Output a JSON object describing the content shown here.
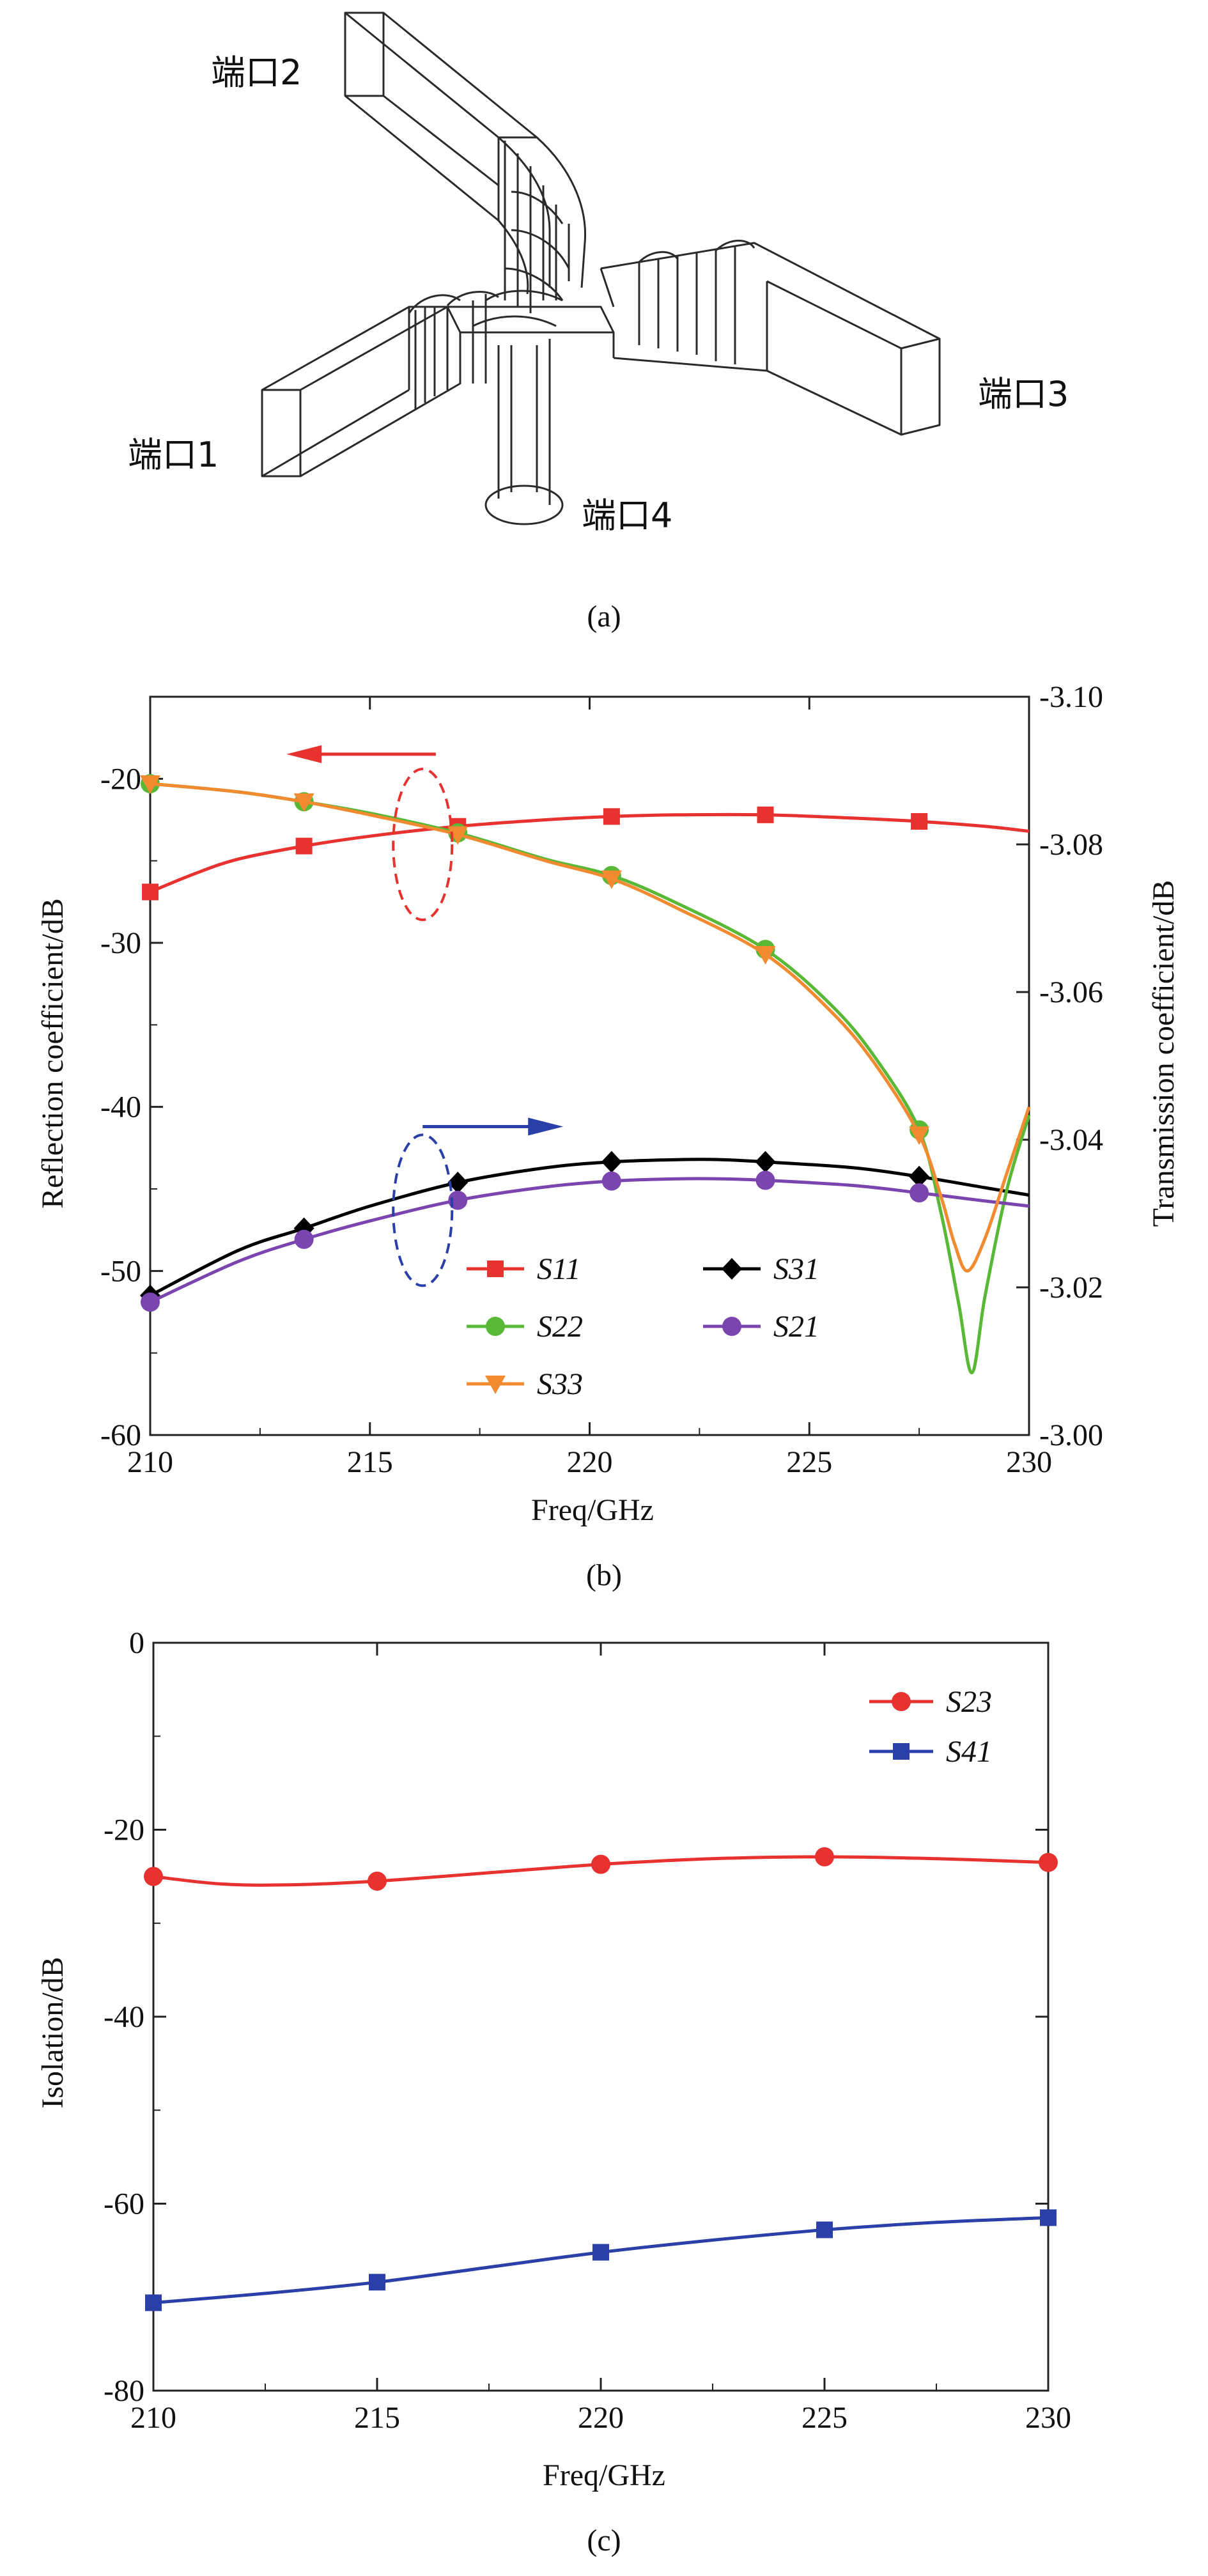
{
  "panel_a": {
    "caption": "(a)",
    "port_labels": [
      "端口1",
      "端口2",
      "端口3",
      "端口4"
    ]
  },
  "chart_data": [
    {
      "type": "line",
      "caption": "(b)",
      "xlabel": "Freq/GHz",
      "ylabel": "Reflection coefficient/dB",
      "y2label": "Transmission coefficient/dB",
      "xlim": [
        210,
        230
      ],
      "ylim": [
        -60,
        -15
      ],
      "y2lim": [
        -3.1,
        -3.0
      ],
      "y2_reversed": true,
      "xticks": [
        210,
        215,
        220,
        225,
        230
      ],
      "yticks": [
        -60,
        -50,
        -40,
        -30,
        -20
      ],
      "y2ticks": [
        -3.1,
        -3.08,
        -3.06,
        -3.04,
        -3.02,
        -3.0
      ],
      "xtick_labels": [
        "210",
        "215",
        "220",
        "225",
        "230"
      ],
      "ytick_labels": [
        "-60",
        "-50",
        "-40",
        "-30",
        "-20"
      ],
      "y2tick_labels": [
        "-3.10",
        "-3.08",
        "-3.06",
        "-3.04",
        "-3.02",
        "-3.00"
      ],
      "legend": {
        "placement": "bottom-center",
        "columns": 2
      },
      "series": [
        {
          "name": "S11",
          "marker": "square",
          "color": "#e8322f",
          "axis": "left",
          "x": [
            210,
            211,
            212,
            213.5,
            215,
            217,
            219,
            220.5,
            222,
            224,
            226,
            227.5,
            229,
            230
          ],
          "y": [
            -26.9,
            -25.8,
            -24.9,
            -24.1,
            -23.5,
            -22.9,
            -22.5,
            -22.3,
            -22.2,
            -22.2,
            -22.4,
            -22.6,
            -22.9,
            -23.2
          ],
          "markers_x": [
            210,
            213.5,
            217,
            220.5,
            224,
            227.5
          ]
        },
        {
          "name": "S31",
          "marker": "diamond",
          "color": "#000000",
          "axis": "right",
          "x": [
            210,
            212,
            213.5,
            215,
            217,
            219,
            220.5,
            222,
            223,
            224,
            226,
            227.5,
            229,
            230
          ],
          "y": [
            -3.0189,
            -3.025,
            -3.028,
            -3.031,
            -3.0342,
            -3.0362,
            -3.037,
            -3.0373,
            -3.0373,
            -3.037,
            -3.0362,
            -3.035,
            -3.0335,
            -3.0325
          ],
          "markers_x": [
            210,
            213.5,
            217,
            220.5,
            224,
            227.5
          ]
        },
        {
          "name": "S22",
          "marker": "circle",
          "color": "#5ab837",
          "axis": "left",
          "x": [
            210,
            212,
            213.5,
            215,
            217,
            219,
            220.5,
            222,
            224,
            225.5,
            226.5,
            227.5,
            228,
            228.4,
            228.7,
            229,
            229.5,
            230
          ],
          "y": [
            -20.3,
            -20.8,
            -21.4,
            -22.1,
            -23.3,
            -24.9,
            -25.9,
            -27.6,
            -30.4,
            -33.8,
            -37.0,
            -41.4,
            -46.5,
            -52.0,
            -56.2,
            -51.5,
            -45.0,
            -40.5
          ],
          "markers_x": [
            210,
            213.5,
            217,
            220.5,
            224,
            227.5
          ]
        },
        {
          "name": "S21",
          "marker": "circle",
          "color": "#7b45b0",
          "axis": "right",
          "x": [
            210,
            212,
            213.5,
            215,
            217,
            219,
            220.5,
            222,
            223,
            224,
            226,
            227.5,
            229,
            230
          ],
          "y": [
            -3.018,
            -3.0235,
            -3.0265,
            -3.029,
            -3.0318,
            -3.0336,
            -3.0344,
            -3.0347,
            -3.0347,
            -3.0345,
            -3.0338,
            -3.0328,
            -3.0317,
            -3.031
          ],
          "markers_x": [
            210,
            213.5,
            217,
            220.5,
            224,
            227.5
          ]
        },
        {
          "name": "S33",
          "marker": "triangle-down",
          "color": "#f28a30",
          "axis": "left",
          "x": [
            210,
            212,
            213.5,
            215,
            217,
            219,
            220.5,
            222,
            224,
            225.5,
            226.5,
            227.5,
            228,
            228.3,
            228.6,
            229,
            229.5,
            230
          ],
          "y": [
            -20.3,
            -20.8,
            -21.4,
            -22.2,
            -23.4,
            -25.0,
            -26.1,
            -27.9,
            -30.7,
            -34.2,
            -37.4,
            -41.7,
            -45.5,
            -48.3,
            -50.0,
            -48.0,
            -44.0,
            -40.0
          ],
          "markers_x": [
            210,
            213.5,
            217,
            220.5,
            224,
            227.5
          ]
        }
      ],
      "annotations": [
        {
          "type": "ellipse-arrow",
          "direction": "left",
          "color": "#e8322f",
          "label_axis": "left"
        },
        {
          "type": "ellipse-arrow",
          "direction": "right",
          "color": "#2b3fa8",
          "label_axis": "right"
        }
      ]
    },
    {
      "type": "line",
      "caption": "(c)",
      "xlabel": "Freq/GHz",
      "ylabel": "Isolation/dB",
      "xlim": [
        210,
        230
      ],
      "ylim": [
        -80,
        0
      ],
      "xticks": [
        210,
        215,
        220,
        225,
        230
      ],
      "yticks": [
        -80,
        -60,
        -40,
        -20,
        0
      ],
      "xtick_labels": [
        "210",
        "215",
        "220",
        "225",
        "230"
      ],
      "ytick_labels": [
        "-80",
        "-60",
        "-40",
        "-20",
        "0"
      ],
      "legend": {
        "placement": "top-right"
      },
      "series": [
        {
          "name": "S23",
          "marker": "circle",
          "color": "#e8322f",
          "x": [
            210,
            211.5,
            213,
            215,
            217.5,
            220,
            222.5,
            225,
            227.5,
            230
          ],
          "y": [
            -25.0,
            -25.8,
            -25.9,
            -25.5,
            -24.6,
            -23.7,
            -23.1,
            -22.9,
            -23.1,
            -23.5
          ],
          "markers_x": [
            210,
            215,
            220,
            225,
            230
          ]
        },
        {
          "name": "S41",
          "marker": "square",
          "color": "#2b3fa8",
          "x": [
            210,
            212.5,
            215,
            217.5,
            220,
            222.5,
            225,
            227.5,
            230
          ],
          "y": [
            -70.6,
            -69.6,
            -68.4,
            -66.8,
            -65.2,
            -63.9,
            -62.8,
            -62.0,
            -61.5
          ],
          "markers_x": [
            210,
            215,
            220,
            225,
            230
          ]
        }
      ]
    }
  ]
}
